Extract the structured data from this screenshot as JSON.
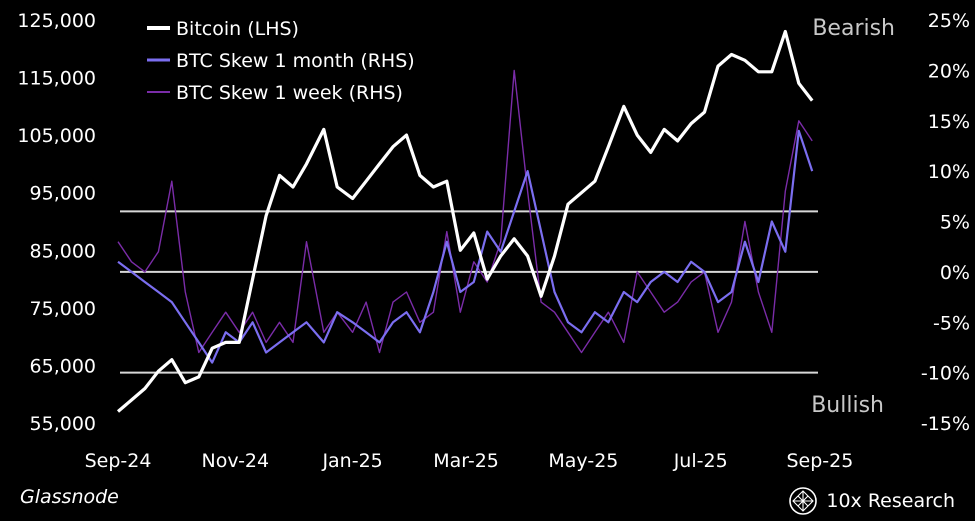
{
  "chart_data": {
    "type": "line",
    "source": "Glassnode",
    "brand": "10x Research",
    "x_ticks": [
      "Sep-24",
      "Nov-24",
      "Jan-25",
      "Mar-25",
      "May-25",
      "Jul-25",
      "Sep-25"
    ],
    "left_axis": {
      "ticks": [
        "125,000",
        "115,000",
        "105,000",
        "95,000",
        "85,000",
        "75,000",
        "65,000",
        "55,000"
      ],
      "ylim": [
        55000,
        125000
      ]
    },
    "right_axis": {
      "ticks": [
        "25%",
        "20%",
        "15%",
        "10%",
        "5%",
        "0%",
        "-5%",
        "-10%",
        "-15%"
      ],
      "ylim": [
        -15,
        25
      ]
    },
    "annotations": {
      "top": "Bearish",
      "bottom": "Bullish"
    },
    "reference_lines": [
      6,
      0,
      -10
    ],
    "series": [
      {
        "name": "Bitcoin (LHS)",
        "axis": "left",
        "color": "#ffffff",
        "points": [
          [
            "2024-09-01",
            57000
          ],
          [
            "2024-09-08",
            59000
          ],
          [
            "2024-09-15",
            61000
          ],
          [
            "2024-09-22",
            64000
          ],
          [
            "2024-09-29",
            66000
          ],
          [
            "2024-10-06",
            62000
          ],
          [
            "2024-10-13",
            63000
          ],
          [
            "2024-10-20",
            68000
          ],
          [
            "2024-10-27",
            69000
          ],
          [
            "2024-11-03",
            69000
          ],
          [
            "2024-11-10",
            80000
          ],
          [
            "2024-11-17",
            91000
          ],
          [
            "2024-11-24",
            98000
          ],
          [
            "2024-12-01",
            96000
          ],
          [
            "2024-12-08",
            100000
          ],
          [
            "2024-12-17",
            106000
          ],
          [
            "2024-12-24",
            96000
          ],
          [
            "2025-01-01",
            94000
          ],
          [
            "2025-01-08",
            97000
          ],
          [
            "2025-01-15",
            100000
          ],
          [
            "2025-01-22",
            103000
          ],
          [
            "2025-01-29",
            105000
          ],
          [
            "2025-02-05",
            98000
          ],
          [
            "2025-02-12",
            96000
          ],
          [
            "2025-02-19",
            97000
          ],
          [
            "2025-02-26",
            85000
          ],
          [
            "2025-03-05",
            88000
          ],
          [
            "2025-03-12",
            80000
          ],
          [
            "2025-03-19",
            84000
          ],
          [
            "2025-03-26",
            87000
          ],
          [
            "2025-04-02",
            84000
          ],
          [
            "2025-04-09",
            77000
          ],
          [
            "2025-04-16",
            84000
          ],
          [
            "2025-04-23",
            93000
          ],
          [
            "2025-04-30",
            95000
          ],
          [
            "2025-05-07",
            97000
          ],
          [
            "2025-05-14",
            103000
          ],
          [
            "2025-05-22",
            110000
          ],
          [
            "2025-05-29",
            105000
          ],
          [
            "2025-06-05",
            102000
          ],
          [
            "2025-06-12",
            106000
          ],
          [
            "2025-06-19",
            104000
          ],
          [
            "2025-06-26",
            107000
          ],
          [
            "2025-07-03",
            109000
          ],
          [
            "2025-07-10",
            117000
          ],
          [
            "2025-07-17",
            119000
          ],
          [
            "2025-07-24",
            118000
          ],
          [
            "2025-07-31",
            116000
          ],
          [
            "2025-08-07",
            116000
          ],
          [
            "2025-08-14",
            123000
          ],
          [
            "2025-08-21",
            114000
          ],
          [
            "2025-08-28",
            111000
          ]
        ]
      },
      {
        "name": "BTC Skew 1 month (RHS)",
        "axis": "right",
        "color": "#7b6ef0",
        "points": [
          [
            "2024-09-01",
            1
          ],
          [
            "2024-09-08",
            0
          ],
          [
            "2024-09-15",
            -1
          ],
          [
            "2024-09-22",
            -2
          ],
          [
            "2024-09-29",
            -3
          ],
          [
            "2024-10-06",
            -5
          ],
          [
            "2024-10-13",
            -7
          ],
          [
            "2024-10-20",
            -9
          ],
          [
            "2024-10-27",
            -6
          ],
          [
            "2024-11-03",
            -7
          ],
          [
            "2024-11-10",
            -5
          ],
          [
            "2024-11-17",
            -8
          ],
          [
            "2024-11-24",
            -7
          ],
          [
            "2024-12-01",
            -6
          ],
          [
            "2024-12-08",
            -5
          ],
          [
            "2024-12-17",
            -7
          ],
          [
            "2024-12-24",
            -4
          ],
          [
            "2025-01-01",
            -5
          ],
          [
            "2025-01-08",
            -6
          ],
          [
            "2025-01-15",
            -7
          ],
          [
            "2025-01-22",
            -5
          ],
          [
            "2025-01-29",
            -4
          ],
          [
            "2025-02-05",
            -6
          ],
          [
            "2025-02-12",
            -2
          ],
          [
            "2025-02-19",
            3
          ],
          [
            "2025-02-26",
            -2
          ],
          [
            "2025-03-05",
            -1
          ],
          [
            "2025-03-12",
            4
          ],
          [
            "2025-03-19",
            2
          ],
          [
            "2025-03-26",
            6
          ],
          [
            "2025-04-02",
            10
          ],
          [
            "2025-04-09",
            4
          ],
          [
            "2025-04-16",
            -2
          ],
          [
            "2025-04-23",
            -5
          ],
          [
            "2025-04-30",
            -6
          ],
          [
            "2025-05-07",
            -4
          ],
          [
            "2025-05-14",
            -5
          ],
          [
            "2025-05-22",
            -2
          ],
          [
            "2025-05-29",
            -3
          ],
          [
            "2025-06-05",
            -1
          ],
          [
            "2025-06-12",
            0
          ],
          [
            "2025-06-19",
            -1
          ],
          [
            "2025-06-26",
            1
          ],
          [
            "2025-07-03",
            0
          ],
          [
            "2025-07-10",
            -3
          ],
          [
            "2025-07-17",
            -2
          ],
          [
            "2025-07-24",
            3
          ],
          [
            "2025-07-31",
            -1
          ],
          [
            "2025-08-07",
            5
          ],
          [
            "2025-08-14",
            2
          ],
          [
            "2025-08-21",
            14
          ],
          [
            "2025-08-28",
            10
          ]
        ]
      },
      {
        "name": "BTC Skew 1 week (RHS)",
        "axis": "right",
        "color": "#7a2ca8",
        "points": [
          [
            "2024-09-01",
            3
          ],
          [
            "2024-09-08",
            1
          ],
          [
            "2024-09-15",
            0
          ],
          [
            "2024-09-22",
            2
          ],
          [
            "2024-09-29",
            9
          ],
          [
            "2024-10-06",
            -2
          ],
          [
            "2024-10-13",
            -8
          ],
          [
            "2024-10-20",
            -6
          ],
          [
            "2024-10-27",
            -4
          ],
          [
            "2024-11-03",
            -6
          ],
          [
            "2024-11-10",
            -4
          ],
          [
            "2024-11-17",
            -7
          ],
          [
            "2024-11-24",
            -5
          ],
          [
            "2024-12-01",
            -7
          ],
          [
            "2024-12-08",
            3
          ],
          [
            "2024-12-17",
            -6
          ],
          [
            "2024-12-24",
            -4
          ],
          [
            "2025-01-01",
            -6
          ],
          [
            "2025-01-08",
            -3
          ],
          [
            "2025-01-15",
            -8
          ],
          [
            "2025-01-22",
            -3
          ],
          [
            "2025-01-29",
            -2
          ],
          [
            "2025-02-05",
            -5
          ],
          [
            "2025-02-12",
            -4
          ],
          [
            "2025-02-19",
            4
          ],
          [
            "2025-02-26",
            -4
          ],
          [
            "2025-03-05",
            1
          ],
          [
            "2025-03-12",
            -1
          ],
          [
            "2025-03-19",
            3
          ],
          [
            "2025-03-26",
            20
          ],
          [
            "2025-04-02",
            8
          ],
          [
            "2025-04-09",
            -3
          ],
          [
            "2025-04-16",
            -4
          ],
          [
            "2025-04-23",
            -6
          ],
          [
            "2025-04-30",
            -8
          ],
          [
            "2025-05-07",
            -6
          ],
          [
            "2025-05-14",
            -4
          ],
          [
            "2025-05-22",
            -7
          ],
          [
            "2025-05-29",
            0
          ],
          [
            "2025-06-05",
            -2
          ],
          [
            "2025-06-12",
            -4
          ],
          [
            "2025-06-19",
            -3
          ],
          [
            "2025-06-26",
            -1
          ],
          [
            "2025-07-03",
            0
          ],
          [
            "2025-07-10",
            -6
          ],
          [
            "2025-07-17",
            -3
          ],
          [
            "2025-07-24",
            5
          ],
          [
            "2025-07-31",
            -2
          ],
          [
            "2025-08-07",
            -6
          ],
          [
            "2025-08-14",
            8
          ],
          [
            "2025-08-21",
            15
          ],
          [
            "2025-08-28",
            13
          ]
        ]
      }
    ]
  }
}
